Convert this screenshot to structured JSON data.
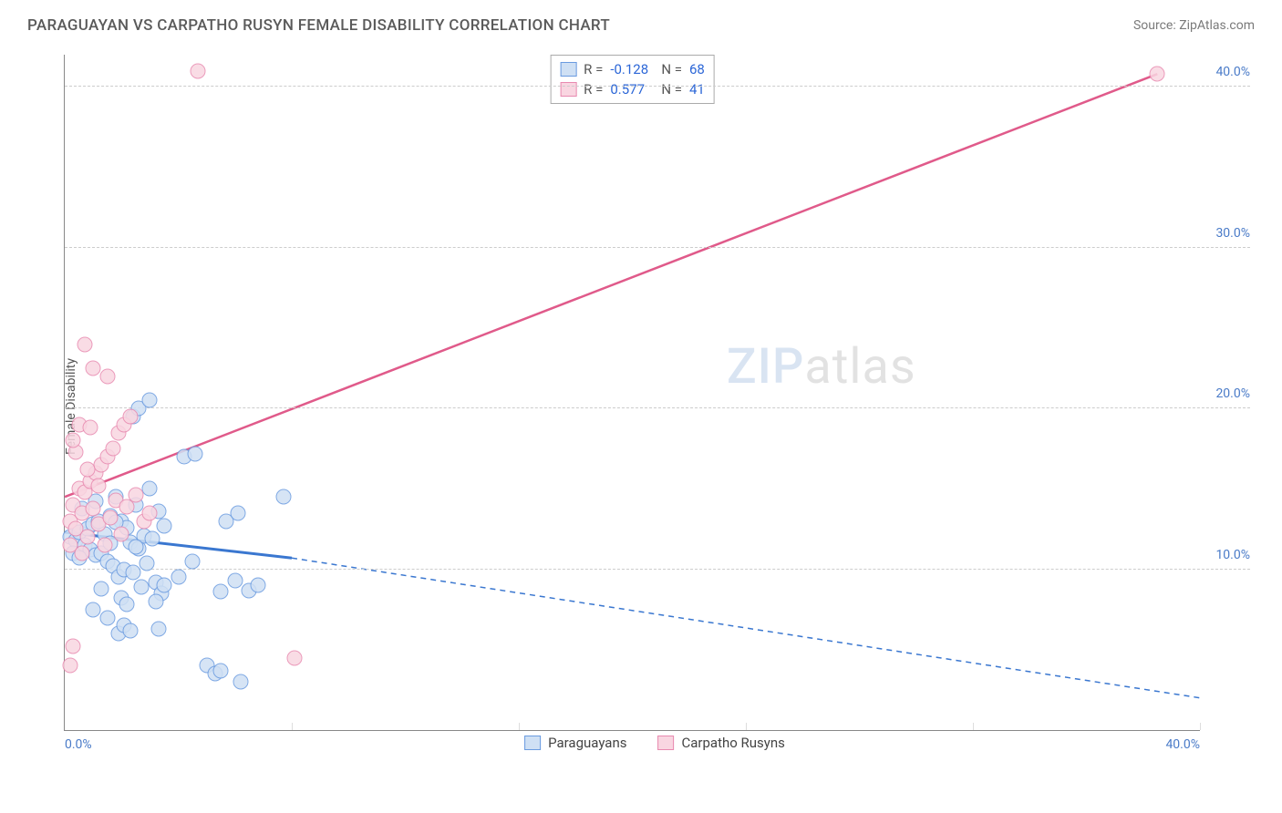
{
  "header": {
    "title": "PARAGUAYAN VS CARPATHO RUSYN FEMALE DISABILITY CORRELATION CHART",
    "source": "Source: ZipAtlas.com"
  },
  "watermark": {
    "zip": "ZIP",
    "atlas": "atlas"
  },
  "chart": {
    "type": "scatter",
    "y_axis_label": "Female Disability",
    "xlim": [
      0,
      40
    ],
    "ylim": [
      0,
      42
    ],
    "x_tick_labels": [
      "0.0%",
      "40.0%"
    ],
    "y_ticks": [
      10,
      20,
      30,
      40
    ],
    "y_tick_labels": [
      "10.0%",
      "20.0%",
      "30.0%",
      "40.0%"
    ],
    "grid_color": "#cccccc",
    "background_color": "#ffffff",
    "axis_color": "#888888",
    "tick_label_color": "#4a7bc8",
    "x_grid_positions": [
      8,
      16,
      24,
      32,
      40
    ],
    "series": [
      {
        "name": "Paraguayans",
        "legend_label": "Paraguayans",
        "stats": {
          "R": "-0.128",
          "N": "68"
        },
        "marker_fill": "#cfe0f4",
        "marker_stroke": "#6a9be0",
        "marker_size": 17,
        "trend": {
          "solid_from": [
            0,
            12.3
          ],
          "solid_to": [
            8.0,
            10.7
          ],
          "dash_to": [
            40,
            2.0
          ],
          "color": "#3a77d0",
          "width": 3
        },
        "points": [
          [
            0.2,
            12.0
          ],
          [
            0.4,
            11.8
          ],
          [
            0.5,
            12.3
          ],
          [
            0.7,
            11.5
          ],
          [
            0.8,
            12.5
          ],
          [
            0.9,
            11.2
          ],
          [
            1.0,
            12.8
          ],
          [
            1.1,
            10.9
          ],
          [
            1.2,
            13.0
          ],
          [
            1.3,
            11.0
          ],
          [
            1.4,
            12.2
          ],
          [
            1.5,
            10.5
          ],
          [
            1.6,
            13.3
          ],
          [
            1.7,
            10.2
          ],
          [
            1.8,
            14.5
          ],
          [
            1.9,
            9.5
          ],
          [
            2.0,
            13.0
          ],
          [
            2.1,
            10.0
          ],
          [
            2.2,
            12.6
          ],
          [
            2.3,
            11.7
          ],
          [
            2.4,
            9.8
          ],
          [
            2.5,
            14.0
          ],
          [
            2.6,
            11.3
          ],
          [
            2.7,
            8.9
          ],
          [
            2.8,
            12.1
          ],
          [
            2.9,
            10.4
          ],
          [
            3.0,
            15.0
          ],
          [
            3.1,
            11.9
          ],
          [
            3.2,
            9.2
          ],
          [
            3.3,
            13.6
          ],
          [
            3.4,
            8.5
          ],
          [
            3.5,
            12.7
          ],
          [
            1.0,
            7.5
          ],
          [
            1.3,
            8.8
          ],
          [
            1.5,
            7.0
          ],
          [
            2.0,
            8.2
          ],
          [
            2.2,
            7.8
          ],
          [
            2.4,
            19.5
          ],
          [
            2.6,
            20.0
          ],
          [
            3.0,
            20.5
          ],
          [
            3.2,
            8.0
          ],
          [
            3.5,
            9.0
          ],
          [
            4.0,
            9.5
          ],
          [
            4.2,
            17.0
          ],
          [
            4.5,
            10.5
          ],
          [
            4.6,
            17.2
          ],
          [
            5.0,
            4.0
          ],
          [
            5.3,
            3.5
          ],
          [
            5.5,
            8.6
          ],
          [
            5.5,
            3.7
          ],
          [
            5.7,
            13.0
          ],
          [
            6.0,
            9.3
          ],
          [
            6.1,
            13.5
          ],
          [
            6.5,
            8.7
          ],
          [
            6.8,
            9.0
          ],
          [
            7.7,
            14.5
          ],
          [
            6.2,
            3.0
          ],
          [
            1.9,
            6.0
          ],
          [
            2.1,
            6.5
          ],
          [
            2.3,
            6.2
          ],
          [
            0.6,
            13.8
          ],
          [
            0.3,
            11.0
          ],
          [
            0.5,
            10.7
          ],
          [
            1.1,
            14.2
          ],
          [
            1.6,
            11.6
          ],
          [
            1.8,
            12.9
          ],
          [
            2.5,
            11.4
          ],
          [
            3.3,
            6.3
          ]
        ]
      },
      {
        "name": "Carpatho Rusyns",
        "legend_label": "Carpatho Rusyns",
        "stats": {
          "R": "0.577",
          "N": "41"
        },
        "marker_fill": "#f9d6e1",
        "marker_stroke": "#e88ab0",
        "marker_size": 17,
        "trend": {
          "solid_from": [
            0,
            14.5
          ],
          "solid_to": [
            38.5,
            40.8
          ],
          "dash_to": null,
          "color": "#e05a8a",
          "width": 2.5
        },
        "points": [
          [
            0.2,
            13.0
          ],
          [
            0.3,
            14.0
          ],
          [
            0.4,
            12.5
          ],
          [
            0.5,
            15.0
          ],
          [
            0.6,
            13.5
          ],
          [
            0.7,
            14.8
          ],
          [
            0.8,
            12.0
          ],
          [
            0.9,
            15.5
          ],
          [
            1.0,
            13.8
          ],
          [
            1.1,
            16.0
          ],
          [
            1.2,
            12.8
          ],
          [
            1.3,
            16.5
          ],
          [
            1.4,
            11.5
          ],
          [
            1.5,
            17.0
          ],
          [
            1.6,
            13.2
          ],
          [
            1.7,
            17.5
          ],
          [
            1.8,
            14.3
          ],
          [
            1.9,
            18.5
          ],
          [
            2.0,
            12.2
          ],
          [
            2.1,
            19.0
          ],
          [
            2.2,
            13.9
          ],
          [
            2.3,
            19.5
          ],
          [
            2.5,
            14.6
          ],
          [
            1.5,
            22.0
          ],
          [
            1.0,
            22.5
          ],
          [
            0.7,
            24.0
          ],
          [
            0.4,
            17.3
          ],
          [
            0.3,
            18.0
          ],
          [
            0.5,
            19.0
          ],
          [
            0.9,
            18.8
          ],
          [
            0.6,
            11.0
          ],
          [
            0.2,
            11.5
          ],
          [
            0.2,
            4.0
          ],
          [
            0.3,
            5.2
          ],
          [
            2.8,
            13.0
          ],
          [
            3.0,
            13.5
          ],
          [
            4.7,
            41.0
          ],
          [
            38.5,
            40.8
          ],
          [
            8.1,
            4.5
          ],
          [
            0.8,
            16.2
          ],
          [
            1.2,
            15.2
          ]
        ]
      }
    ]
  },
  "stats_box": {
    "rows": [
      {
        "swatch_fill": "#cfe0f4",
        "swatch_stroke": "#6a9be0",
        "R_label": "R =",
        "R": "-0.128",
        "N_label": "N =",
        "N": "68"
      },
      {
        "swatch_fill": "#f9d6e1",
        "swatch_stroke": "#e88ab0",
        "R_label": "R =",
        "R": "0.577",
        "N_label": "N =",
        "N": "41"
      }
    ]
  },
  "legend": [
    {
      "swatch_fill": "#cfe0f4",
      "swatch_stroke": "#6a9be0",
      "label": "Paraguayans"
    },
    {
      "swatch_fill": "#f9d6e1",
      "swatch_stroke": "#e88ab0",
      "label": "Carpatho Rusyns"
    }
  ]
}
